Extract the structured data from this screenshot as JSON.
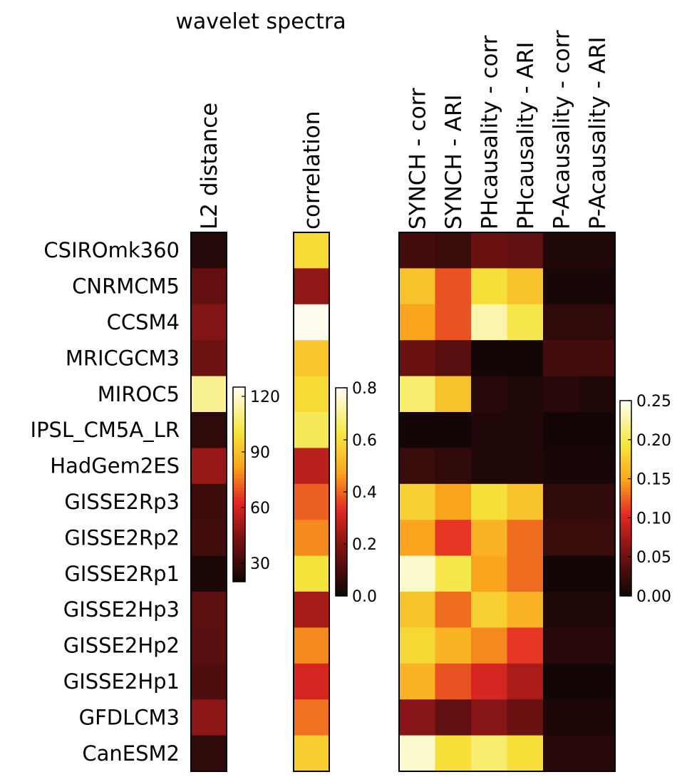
{
  "title": "wavelet spectra",
  "models": [
    "CSIROmk360",
    "CNRMCM5",
    "CCSM4",
    "MRICGCM3",
    "MIROC5",
    "IPSL_CM5A_LR",
    "HadGem2ES",
    "GISSE2Rp3",
    "GISSE2Rp2",
    "GISSE2Rp1",
    "GISSE2Hp3",
    "GISSE2Hp2",
    "GISSE2Hp1",
    "GFDLCM3",
    "CanESM2"
  ],
  "chart_data": [
    {
      "type": "heatmap",
      "name": "l2",
      "columns": [
        "L2 distance"
      ],
      "vmin": 20,
      "vmax": 125,
      "colorbar_ticks": [
        30,
        60,
        90,
        120
      ],
      "values": [
        [
          26
        ],
        [
          40
        ],
        [
          46
        ],
        [
          42
        ],
        [
          113
        ],
        [
          28
        ],
        [
          50
        ],
        [
          31
        ],
        [
          32
        ],
        [
          24
        ],
        [
          38
        ],
        [
          37
        ],
        [
          35
        ],
        [
          48
        ],
        [
          28
        ]
      ]
    },
    {
      "type": "heatmap",
      "name": "corr",
      "columns": [
        "correlation"
      ],
      "vmin": 0.0,
      "vmax": 0.8,
      "colorbar_ticks": [
        "0.0",
        "0.2",
        "0.4",
        "0.6",
        "0.8"
      ],
      "values": [
        [
          0.6
        ],
        [
          0.22
        ],
        [
          0.8
        ],
        [
          0.55
        ],
        [
          0.6
        ],
        [
          0.65
        ],
        [
          0.28
        ],
        [
          0.4
        ],
        [
          0.45
        ],
        [
          0.62
        ],
        [
          0.25
        ],
        [
          0.45
        ],
        [
          0.32
        ],
        [
          0.42
        ],
        [
          0.57
        ]
      ]
    },
    {
      "type": "heatmap",
      "name": "comp",
      "columns": [
        "SYNCH - corr",
        "SYNCH - ARI",
        "PHcausality - corr",
        "PHcausality - ARI",
        "P-Acausality - corr",
        "P-Acausality - ARI"
      ],
      "vmin": 0.0,
      "vmax": 0.25,
      "colorbar_ticks": [
        "0.00",
        "0.05",
        "0.10",
        "0.15",
        "0.20",
        "0.25"
      ],
      "values": [
        [
          0.03,
          0.025,
          0.05,
          0.045,
          0.012,
          0.012
        ],
        [
          0.17,
          0.12,
          0.19,
          0.17,
          0.008,
          0.008
        ],
        [
          0.15,
          0.12,
          0.23,
          0.2,
          0.02,
          0.02
        ],
        [
          0.05,
          0.04,
          0.005,
          0.005,
          0.03,
          0.03
        ],
        [
          0.21,
          0.17,
          0.015,
          0.012,
          0.015,
          0.012
        ],
        [
          0.005,
          0.005,
          0.012,
          0.012,
          0.005,
          0.005
        ],
        [
          0.025,
          0.02,
          0.012,
          0.012,
          0.008,
          0.008
        ],
        [
          0.18,
          0.15,
          0.19,
          0.17,
          0.02,
          0.02
        ],
        [
          0.15,
          0.11,
          0.16,
          0.13,
          0.025,
          0.025
        ],
        [
          0.24,
          0.2,
          0.15,
          0.13,
          0.005,
          0.005
        ],
        [
          0.17,
          0.13,
          0.18,
          0.16,
          0.012,
          0.012
        ],
        [
          0.185,
          0.16,
          0.14,
          0.11,
          0.015,
          0.015
        ],
        [
          0.16,
          0.12,
          0.1,
          0.08,
          0.005,
          0.005
        ],
        [
          0.065,
          0.045,
          0.065,
          0.05,
          0.01,
          0.01
        ],
        [
          0.24,
          0.19,
          0.21,
          0.19,
          0.015,
          0.015
        ]
      ]
    }
  ]
}
